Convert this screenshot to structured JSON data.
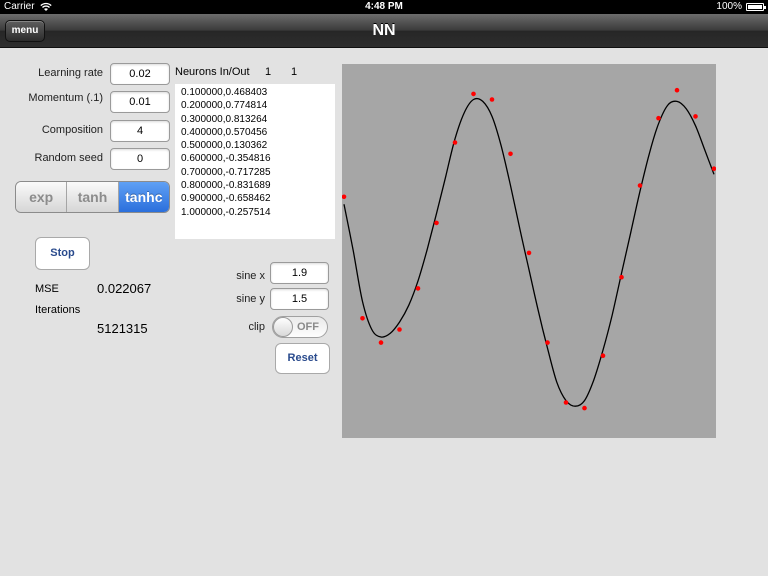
{
  "status": {
    "carrier": "Carrier",
    "time": "4:48 PM",
    "battery": "100%",
    "icons": [
      "wifi-icon",
      "battery-icon"
    ]
  },
  "nav": {
    "menu_label": "menu",
    "title": "NN"
  },
  "params": {
    "learning_rate": {
      "label": "Learning rate",
      "value": "0.02"
    },
    "momentum": {
      "label": "Momentum (.1)",
      "value": "0.01"
    },
    "composition": {
      "label": "Composition",
      "value": "4"
    },
    "random_seed": {
      "label": "Random seed",
      "value": "0"
    }
  },
  "activation": {
    "options": [
      "exp",
      "tanh",
      "tanhc"
    ],
    "selected": "tanhc"
  },
  "neurons": {
    "label": "Neurons In/Out",
    "in": "1",
    "out": "1"
  },
  "samples": [
    "0.100000,0.468403",
    "0.200000,0.774814",
    "0.300000,0.813264",
    "0.400000,0.570456",
    "0.500000,0.130362",
    "0.600000,-0.354816",
    "0.700000,-0.717285",
    "0.800000,-0.831689",
    "0.900000,-0.658462",
    "1.000000,-0.257514"
  ],
  "controls": {
    "stop_label": "Stop",
    "mse_label": "MSE",
    "mse_value": "0.022067",
    "iterations_label": "Iterations",
    "iterations_value": "5121315",
    "sine_x_label": "sine x",
    "sine_x_value": "1.9",
    "sine_y_label": "sine y",
    "sine_y_value": "1.5",
    "clip_label": "clip",
    "clip_state": "OFF",
    "reset_label": "Reset"
  },
  "colors": {
    "accent": "#2b6fdc",
    "plot_bg": "#a6a6a6",
    "curve": "#000000",
    "points": "#ff0000"
  },
  "chart_data": {
    "type": "scatter",
    "series": [
      {
        "kind": "points",
        "x": [
          0.0,
          0.05,
          0.1,
          0.15,
          0.2,
          0.25,
          0.3,
          0.35,
          0.4,
          0.45,
          0.5,
          0.55,
          0.6,
          0.65,
          0.7,
          0.75,
          0.8,
          0.85,
          0.9,
          0.95,
          1.0
        ],
        "y": [
          0.29,
          -0.36,
          -0.49,
          -0.42,
          -0.2,
          0.15,
          0.58,
          0.84,
          0.81,
          0.52,
          -0.01,
          -0.49,
          -0.81,
          -0.84,
          -0.56,
          -0.14,
          0.35,
          0.71,
          0.86,
          0.72,
          0.44
        ]
      },
      {
        "kind": "curve",
        "x": [
          0.0,
          0.025,
          0.05,
          0.075,
          0.1,
          0.125,
          0.15,
          0.175,
          0.2,
          0.225,
          0.25,
          0.275,
          0.3,
          0.325,
          0.35,
          0.375,
          0.4,
          0.425,
          0.45,
          0.475,
          0.5,
          0.525,
          0.55,
          0.575,
          0.6,
          0.625,
          0.65,
          0.675,
          0.7,
          0.725,
          0.75,
          0.775,
          0.8,
          0.825,
          0.85,
          0.875,
          0.9,
          0.925,
          0.95,
          0.975,
          1.0
        ],
        "y": [
          0.25,
          0.0,
          -0.27,
          -0.42,
          -0.46,
          -0.44,
          -0.38,
          -0.29,
          -0.16,
          0.01,
          0.2,
          0.4,
          0.6,
          0.74,
          0.81,
          0.8,
          0.72,
          0.56,
          0.35,
          0.12,
          -0.1,
          -0.32,
          -0.52,
          -0.7,
          -0.8,
          -0.83,
          -0.8,
          -0.69,
          -0.53,
          -0.34,
          -0.12,
          0.1,
          0.32,
          0.52,
          0.68,
          0.78,
          0.8,
          0.76,
          0.67,
          0.54,
          0.41
        ]
      }
    ],
    "xlim": [
      0,
      1
    ],
    "ylim": [
      -1,
      1
    ],
    "grid": false
  }
}
